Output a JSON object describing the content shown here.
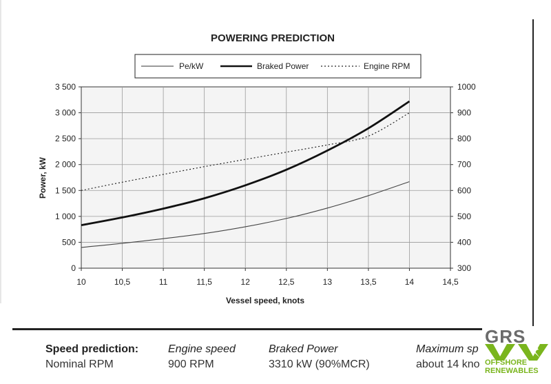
{
  "chart_data": {
    "type": "line",
    "title": "POWERING PREDICTION",
    "xlabel": "Vessel speed, knots",
    "ylabel": "Power, kW",
    "xlim": [
      10,
      14.5
    ],
    "ylim": [
      0,
      3500
    ],
    "y2lim": [
      300,
      1000
    ],
    "x_ticks": [
      "10",
      "10,5",
      "11",
      "11,5",
      "12",
      "12,5",
      "13",
      "13,5",
      "14",
      "14,5"
    ],
    "y_ticks": [
      "0",
      "500",
      "1 000",
      "1 500",
      "2 000",
      "2 500",
      "3 000",
      "3 500"
    ],
    "y2_ticks": [
      "300",
      "400",
      "500",
      "600",
      "700",
      "800",
      "900",
      "1000"
    ],
    "grid": true,
    "legend": "top-center",
    "series": [
      {
        "name": "Pe/kW",
        "axis": "left",
        "style": "thin",
        "x": [
          10,
          10.5,
          11,
          11.5,
          12,
          12.5,
          13,
          13.5,
          14
        ],
        "y": [
          400,
          480,
          570,
          670,
          800,
          960,
          1160,
          1400,
          1670
        ]
      },
      {
        "name": "Braked Power",
        "axis": "left",
        "style": "thick",
        "x": [
          10,
          10.5,
          11,
          11.5,
          12,
          12.5,
          13,
          13.5,
          14
        ],
        "y": [
          830,
          980,
          1150,
          1350,
          1600,
          1900,
          2270,
          2700,
          3220
        ]
      },
      {
        "name": "Engine RPM",
        "axis": "right",
        "style": "dotted",
        "x": [
          10,
          10.5,
          11,
          11.5,
          12,
          12.5,
          13,
          13.5,
          14
        ],
        "y": [
          600,
          632,
          662,
          692,
          720,
          748,
          776,
          810,
          900
        ]
      }
    ]
  },
  "summary": {
    "heading": "Speed prediction:",
    "heading_value": "Nominal RPM",
    "engine_speed_label": "Engine speed",
    "engine_speed_value": "900 RPM",
    "braked_power_label": "Braked Power",
    "braked_power_value": "3310 kW (90%MCR)",
    "max_speed_label": "Maximum sp",
    "max_speed_value": "about 14 kno"
  },
  "logo": {
    "line1": "GRS",
    "line2": "OFFSHORE",
    "line3": "RENEWABLES",
    "accent_color": "#7ab51d",
    "text_color": "#6b6b6b"
  }
}
